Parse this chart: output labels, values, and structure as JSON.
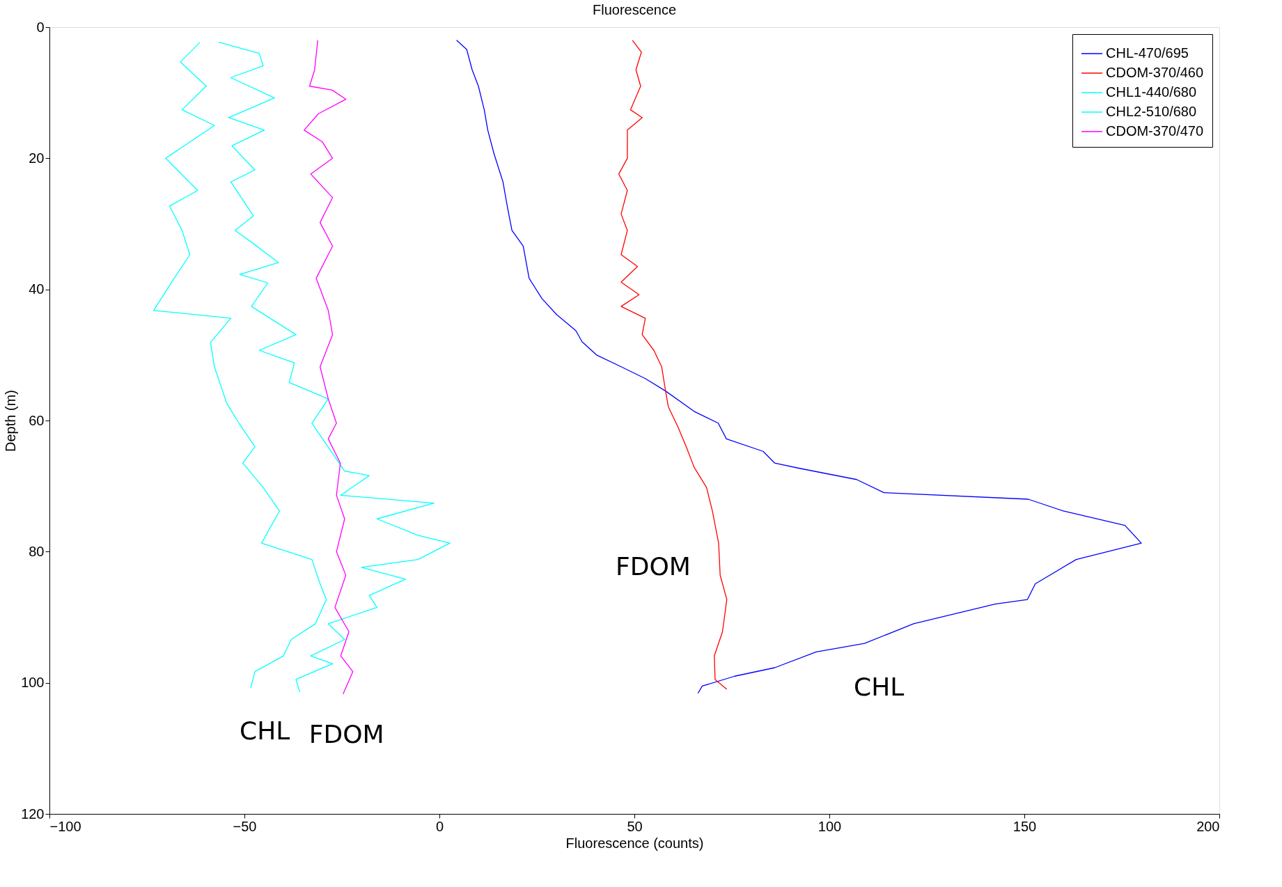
{
  "chart_data": {
    "type": "line",
    "title": "Fluorescence",
    "xlabel": "Fluorescence (counts)",
    "ylabel": "Depth (m)",
    "xlim": [
      -100,
      200
    ],
    "xticks": [
      -100,
      -50,
      0,
      50,
      100,
      150,
      200
    ],
    "ylim": [
      120,
      0
    ],
    "yticks": [
      0,
      20,
      40,
      60,
      80,
      100,
      120
    ],
    "grid": false,
    "legend": "top right",
    "marker": "none",
    "line_style": "solid",
    "series": [
      {
        "name": "CHL-470/695",
        "color": "#0000ff",
        "x": [
          4.4,
          7,
          8.4,
          10,
          11.5,
          12.4,
          14,
          16.3,
          17.4,
          18.6,
          21.5,
          23,
          26.3,
          30,
          35,
          36.6,
          40.3,
          46.6,
          52.8,
          58,
          65.3,
          71.5,
          73.6,
          83,
          86,
          92.4,
          107,
          114,
          151,
          160,
          175.8,
          180,
          163.3,
          152.8,
          150.8,
          142.5,
          121.6,
          109,
          96.6,
          86,
          75.7,
          67.4,
          66.3
        ],
        "values": [
          2,
          3.4,
          6.5,
          9,
          12.6,
          15.7,
          19.3,
          23.6,
          27.3,
          31,
          33.4,
          38.3,
          41.4,
          43.8,
          46.3,
          48,
          50,
          51.8,
          53.6,
          55.5,
          58.6,
          60.4,
          62.8,
          64.7,
          66.5,
          67.3,
          69,
          71,
          72,
          73.8,
          76,
          78.7,
          81.2,
          84.9,
          87.3,
          88,
          91,
          94,
          95.3,
          97.7,
          99,
          100.5,
          101.6
        ]
      },
      {
        "name": "CDOM-370/460",
        "color": "#ff0000",
        "x": [
          49.5,
          51.8,
          50.4,
          51.6,
          49,
          52,
          48.2,
          48.2,
          46,
          48.2,
          46.6,
          48.2,
          46.6,
          50.8,
          46.6,
          51.2,
          46.6,
          52.8,
          52,
          55,
          57,
          58,
          58.7,
          61.2,
          63.3,
          65.3,
          68.5,
          70,
          71.6,
          72,
          73.7,
          72.6,
          70.5,
          70.7,
          73.7
        ],
        "values": [
          2,
          3.8,
          6.5,
          9,
          12.6,
          13.8,
          15.7,
          20,
          22.4,
          24.9,
          28.5,
          31,
          34.7,
          36.5,
          38.9,
          40.8,
          42.6,
          44.4,
          46.9,
          49.3,
          51.8,
          55.5,
          57.9,
          61,
          64,
          67.1,
          70.2,
          73.8,
          78.7,
          83.6,
          87.3,
          92.2,
          95.9,
          99.5,
          101
        ]
      },
      {
        "name": "CHL1-440/680",
        "color": "#00ffff",
        "x": [
          -61.4,
          -66.4,
          -59.8,
          -66,
          -57.7,
          -70.2,
          -62,
          -69.2,
          -66,
          -64,
          -68,
          -73.3,
          -53.5,
          -58.7,
          -57.7,
          -55.6,
          -54.6,
          -51.4,
          -47.3,
          -50.4,
          -45.2,
          -41,
          -45.6,
          -32.7,
          -30.6,
          -29,
          -31.8,
          -38,
          -40,
          -47.3,
          -48.4
        ],
        "values": [
          2.3,
          5.3,
          9,
          12.6,
          15,
          20,
          24.9,
          27.3,
          31,
          34.7,
          38.3,
          43.2,
          44.4,
          48.1,
          51.8,
          55.5,
          57.3,
          60.4,
          64,
          66.5,
          70.2,
          73.8,
          78.7,
          81.2,
          84.9,
          87.3,
          91,
          93.4,
          95.9,
          98.3,
          100.8
        ]
      },
      {
        "name": "CHL2-510/680",
        "color": "#00ffff",
        "x": [
          -56.6,
          -46.2,
          -45.2,
          -53.5,
          -42.3,
          -54,
          -44.9,
          -53.2,
          -47.3,
          -53.5,
          -47.7,
          -52.4,
          -48.2,
          -41.3,
          -51.2,
          -44,
          -48.2,
          -36.8,
          -46.2,
          -37.2,
          -38.5,
          -28.5,
          -32.7,
          -24.3,
          -18,
          -25.3,
          -1.4,
          -16,
          -5.5,
          2.7,
          -5.5,
          -20,
          -8.7,
          -18,
          -16,
          -28.5,
          -24.3,
          -33,
          -27.4,
          -36.8,
          -35.8
        ],
        "values": [
          2.3,
          4,
          5.9,
          7.7,
          10.8,
          13.8,
          15.7,
          18.1,
          21.8,
          23.6,
          28.8,
          31,
          32.8,
          35.9,
          37.7,
          39,
          42.6,
          46.9,
          49.3,
          51.2,
          54.2,
          56.7,
          60.4,
          67.7,
          68.4,
          71.4,
          72.6,
          75,
          77.5,
          78.7,
          81.2,
          82.4,
          84.2,
          86.7,
          88.5,
          91,
          93.4,
          95.9,
          97.1,
          99.5,
          101.4
        ]
      },
      {
        "name": "CDOM-370/470",
        "color": "#ff00ff",
        "x": [
          -31.2,
          -32,
          -33.3,
          -27.5,
          -24,
          -31,
          -34.7,
          -30,
          -27.4,
          -33,
          -27.4,
          -30.6,
          -27.4,
          -31.6,
          -28.5,
          -27.4,
          -30.6,
          -28.5,
          -26.4,
          -28.5,
          -25.4,
          -26.4,
          -24.3,
          -26.4,
          -24,
          -26.8,
          -23.2,
          -25.3,
          -22.2,
          -24.7
        ],
        "values": [
          2,
          6.5,
          9,
          9.6,
          11,
          13.2,
          15.7,
          17.5,
          20,
          22.4,
          26,
          29.8,
          33.4,
          38.3,
          43.2,
          46.9,
          51.8,
          56.7,
          60.4,
          62.8,
          66.5,
          71.4,
          75,
          80,
          83.6,
          88.5,
          92.2,
          95.9,
          98.3,
          101.7
        ]
      }
    ],
    "annotations": [
      "FDOM",
      "CHL",
      "CHL",
      "FDOM"
    ]
  }
}
